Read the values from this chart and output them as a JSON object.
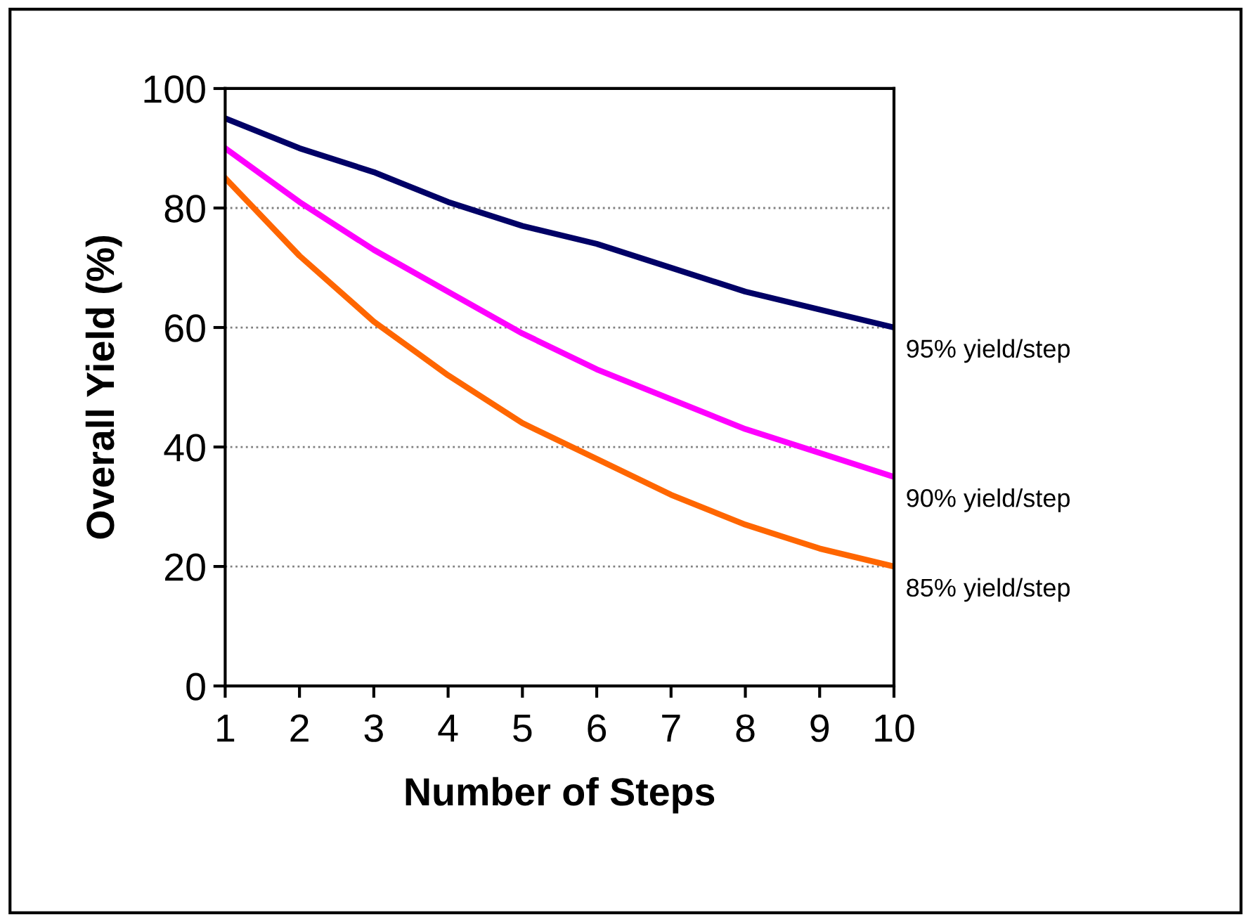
{
  "chart_data": {
    "type": "line",
    "xlabel": "Number of Steps",
    "ylabel": "Overall Yield (%)",
    "x": [
      1,
      2,
      3,
      4,
      5,
      6,
      7,
      8,
      9,
      10
    ],
    "series": [
      {
        "name": "95% yield/step",
        "color": "#000066",
        "values": [
          95,
          90,
          86,
          81,
          77,
          74,
          70,
          66,
          63,
          60
        ]
      },
      {
        "name": "90% yield/step",
        "color": "#ff00ff",
        "values": [
          90,
          81,
          73,
          66,
          59,
          53,
          48,
          43,
          39,
          35
        ]
      },
      {
        "name": "85% yield/step",
        "color": "#ff6600",
        "values": [
          85,
          72,
          61,
          52,
          44,
          38,
          32,
          27,
          23,
          20
        ]
      }
    ],
    "xlim": [
      1,
      10
    ],
    "ylim": [
      0,
      100
    ],
    "xticks": [
      1,
      2,
      3,
      4,
      5,
      6,
      7,
      8,
      9,
      10
    ],
    "yticks": [
      0,
      20,
      40,
      60,
      80,
      100
    ],
    "grid": "y",
    "legend": false,
    "marker": "none",
    "line_style": "solid"
  }
}
